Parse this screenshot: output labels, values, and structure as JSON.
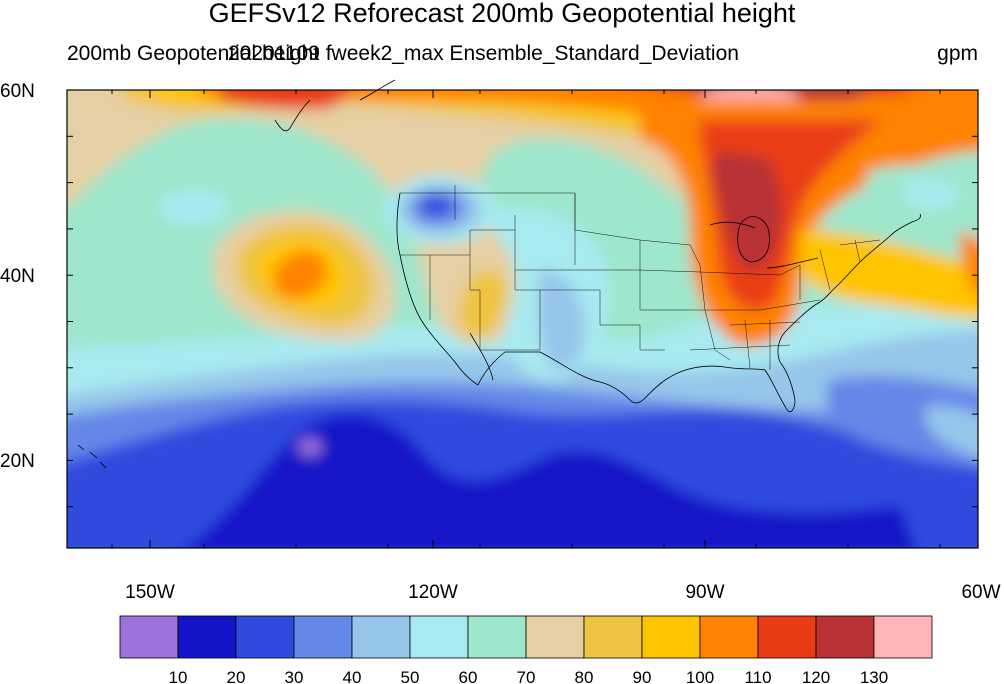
{
  "title": "GEFSv12 Reforecast 200mb Geopotential height",
  "subtitle_left": "200mb Geopotential height",
  "subtitle_center": "20201109 fweek2_max Ensemble_Standard_Deviation",
  "units": "gpm",
  "lat_labels": [
    "60N",
    "40N",
    "20N"
  ],
  "lon_labels": [
    "150W",
    "120W",
    "90W",
    "60W"
  ],
  "colorbar": {
    "colors": [
      "#9a72d8",
      "#1414c8",
      "#2e4bde",
      "#6488e8",
      "#96c6ea",
      "#a8eaf0",
      "#9ee6cc",
      "#e6cfa2",
      "#eec440",
      "#ffc400",
      "#ff8200",
      "#ea3c14",
      "#b83236",
      "#ffb4b8"
    ],
    "labels": [
      "10",
      "20",
      "30",
      "40",
      "50",
      "60",
      "70",
      "80",
      "90",
      "100",
      "110",
      "120",
      "130"
    ]
  },
  "map_extent": {
    "lon_min": -159,
    "lon_max": -61,
    "lat_min": 10,
    "lat_max": 60
  }
}
